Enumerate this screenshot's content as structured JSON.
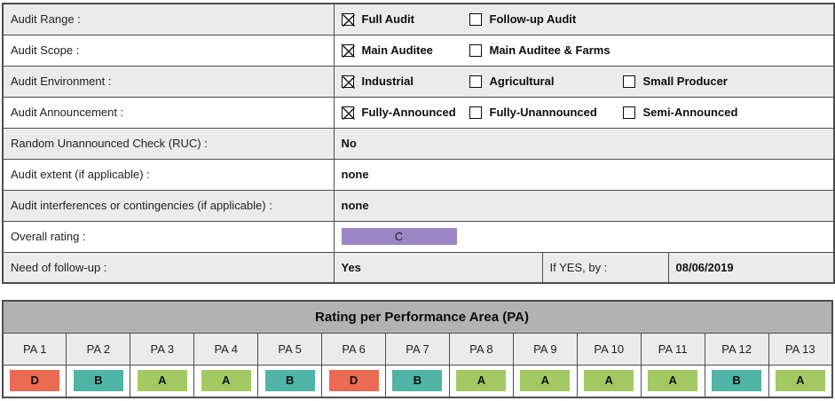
{
  "audit_form": {
    "rows": [
      {
        "label": "Audit Range :",
        "type": "checkboxes",
        "options": [
          {
            "label": "Full Audit",
            "checked": true
          },
          {
            "label": "Follow-up Audit",
            "checked": false
          }
        ]
      },
      {
        "label": "Audit Scope :",
        "type": "checkboxes",
        "options": [
          {
            "label": "Main Auditee",
            "checked": true
          },
          {
            "label": "Main Auditee & Farms",
            "checked": false
          }
        ]
      },
      {
        "label": "Audit Environment :",
        "type": "checkboxes",
        "options": [
          {
            "label": "Industrial",
            "checked": true
          },
          {
            "label": "Agricultural",
            "checked": false
          },
          {
            "label": "Small Producer",
            "checked": false
          }
        ]
      },
      {
        "label": "Audit Announcement :",
        "type": "checkboxes",
        "options": [
          {
            "label": "Fully-Announced",
            "checked": true
          },
          {
            "label": "Fully-Unannounced",
            "checked": false
          },
          {
            "label": "Semi-Announced",
            "checked": false
          }
        ]
      },
      {
        "label": "Random Unannounced Check (RUC) :",
        "type": "text",
        "value": "No"
      },
      {
        "label": "Audit extent (if applicable) :",
        "type": "text",
        "value": "none"
      },
      {
        "label": "Audit interferences or contingencies (if applicable) :",
        "type": "text",
        "value": "none"
      },
      {
        "label": "Overall rating :",
        "type": "rating-badge",
        "value": "C"
      },
      {
        "label": "Need of follow-up :",
        "type": "followup",
        "value": "Yes",
        "if_yes_label": "If YES, by :",
        "date": "08/06/2019"
      }
    ]
  },
  "pa_table": {
    "title": "Rating per Performance Area (PA)",
    "columns": [
      "PA 1",
      "PA 2",
      "PA 3",
      "PA 4",
      "PA 5",
      "PA 6",
      "PA 7",
      "PA 8",
      "PA 9",
      "PA 10",
      "PA 11",
      "PA 12",
      "PA 13"
    ],
    "ratings": [
      "D",
      "B",
      "A",
      "A",
      "B",
      "D",
      "B",
      "A",
      "A",
      "A",
      "A",
      "B",
      "A"
    ]
  },
  "colors": {
    "rating_A": "#a3ca62",
    "rating_B": "#4fb4a5",
    "rating_C": "#9b87c5",
    "rating_D": "#ea6a52",
    "table_border": "#4d4d4d",
    "row_alt_bg": "#ebebeb",
    "section_header_bg": "#b2b2b2"
  }
}
